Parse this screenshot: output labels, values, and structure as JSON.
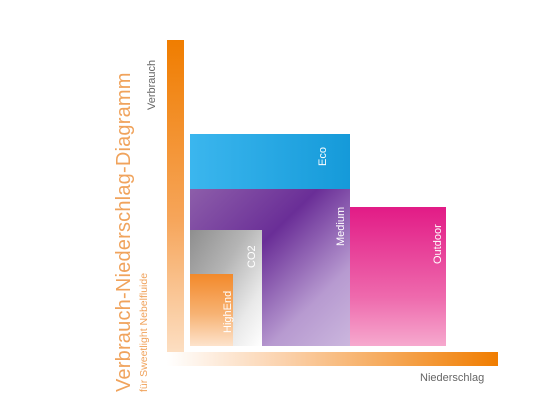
{
  "diagram": {
    "title": "Verbrauch-Niederschlag-Diagramm",
    "subtitle": "für Sweetlight Nebelfluide",
    "y_axis_label": "Verbrauch",
    "x_axis_label": "Niederschlag",
    "colors": {
      "axis": "#f07d00",
      "eco": "#159ad9",
      "medium": "#6a2e97",
      "outdoor": "#e21b86",
      "co2": "#8e8e8e",
      "highend": "#f3892a"
    },
    "categories": [
      {
        "key": "eco",
        "label": "Eco"
      },
      {
        "key": "medium",
        "label": "Medium"
      },
      {
        "key": "outdoor",
        "label": "Outdoor"
      },
      {
        "key": "co2",
        "label": "CO2"
      },
      {
        "key": "highend",
        "label": "HighEnd"
      }
    ]
  }
}
